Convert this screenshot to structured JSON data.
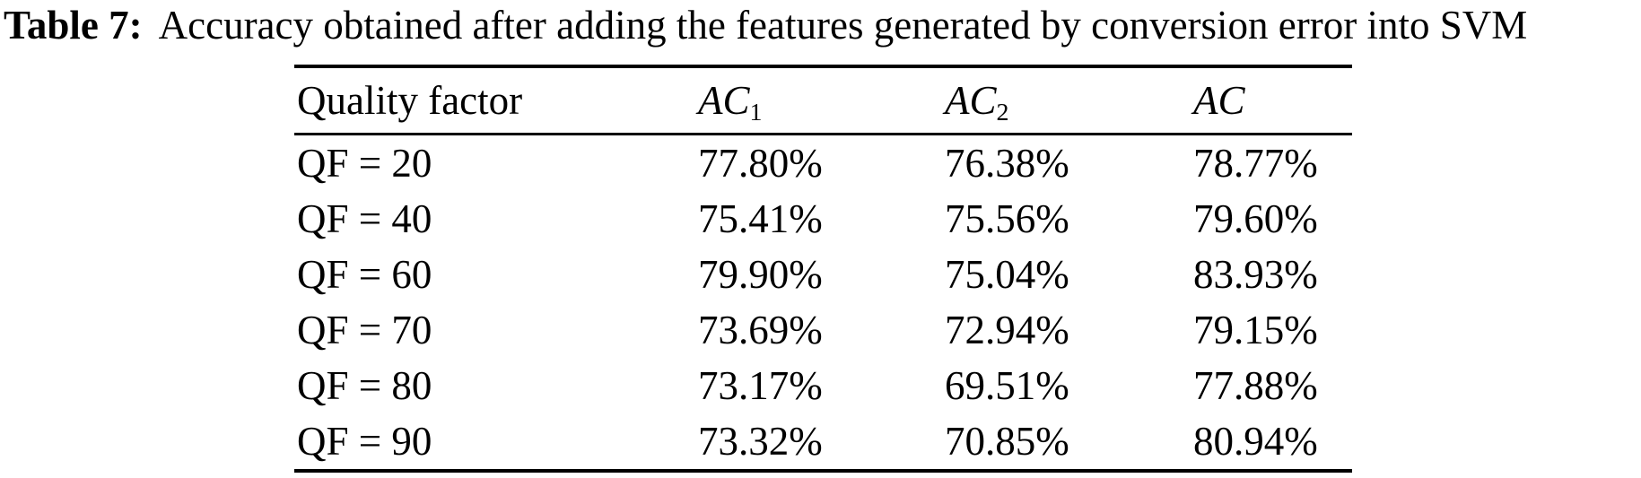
{
  "caption": {
    "label": "Table 7:",
    "text": "Accuracy obtained after adding the features generated by conversion error into SVM"
  },
  "table": {
    "header": {
      "col1": "Quality factor",
      "col2_base": "AC",
      "col2_sub": "1",
      "col3_base": "AC",
      "col3_sub": "2",
      "col4_base": "AC",
      "col4_sub": ""
    },
    "rows": [
      [
        "QF = 20",
        "77.80%",
        "76.38%",
        "78.77%"
      ],
      [
        "QF = 40",
        "75.41%",
        "75.56%",
        "79.60%"
      ],
      [
        "QF = 60",
        "79.90%",
        "75.04%",
        "83.93%"
      ],
      [
        "QF = 70",
        "73.69%",
        "72.94%",
        "79.15%"
      ],
      [
        "QF = 80",
        "73.17%",
        "69.51%",
        "77.88%"
      ],
      [
        "QF = 90",
        "73.32%",
        "70.85%",
        "80.94%"
      ]
    ]
  }
}
